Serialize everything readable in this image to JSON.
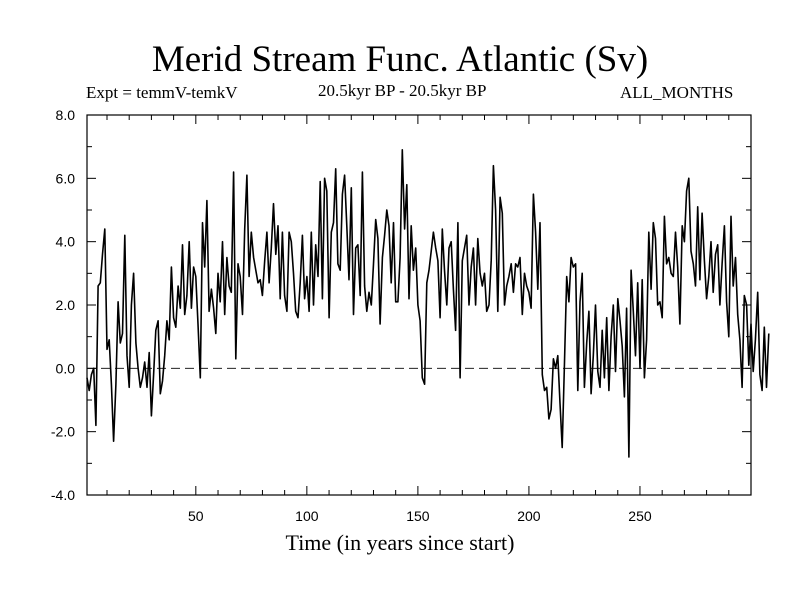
{
  "chart_data": {
    "type": "line",
    "title": "Merid Stream Func. Atlantic (Sv)",
    "subtitle_left": "Expt = temmV-temkV",
    "subtitle_center": "20.5kyr BP - 20.5kyr BP",
    "subtitle_right": "ALL_MONTHS",
    "xlabel": "Time (in years since start)",
    "ylabel": "",
    "xlim": [
      1,
      300
    ],
    "ylim": [
      -4.0,
      8.0
    ],
    "xticks": [
      50,
      100,
      150,
      200,
      250
    ],
    "yticks": [
      -4.0,
      -2.0,
      0.0,
      2.0,
      4.0,
      6.0,
      8.0
    ],
    "ytick_labels": [
      "-4.0",
      "-2.0",
      "0.0",
      "2.0",
      "4.0",
      "6.0",
      "8.0"
    ],
    "reference_line": 0.0,
    "series": [
      {
        "name": "Merid Stream Func.",
        "x_start": 1,
        "x_step": 1,
        "values": [
          -0.3,
          -0.7,
          -0.2,
          0.0,
          -1.8,
          2.6,
          2.7,
          3.6,
          4.4,
          0.6,
          0.9,
          -0.5,
          -2.3,
          -0.5,
          2.1,
          0.8,
          1.1,
          4.2,
          0.4,
          -0.6,
          2.0,
          3.0,
          0.8,
          0.0,
          -0.6,
          -0.3,
          0.2,
          -0.6,
          0.5,
          -1.5,
          -0.2,
          1.2,
          1.5,
          -0.8,
          -0.4,
          0.4,
          1.5,
          0.9,
          3.2,
          1.6,
          1.3,
          2.6,
          1.9,
          3.9,
          1.7,
          2.3,
          4.0,
          1.9,
          3.2,
          2.9,
          1.4,
          -0.3,
          4.6,
          3.2,
          5.3,
          1.8,
          2.5,
          1.9,
          1.1,
          3.0,
          2.1,
          4.0,
          1.7,
          3.5,
          2.6,
          2.4,
          6.2,
          0.3,
          3.3,
          2.9,
          1.7,
          4.4,
          6.1,
          2.9,
          4.3,
          3.5,
          3.1,
          2.7,
          2.8,
          2.3,
          3.4,
          4.3,
          2.7,
          3.8,
          5.2,
          3.6,
          4.5,
          2.2,
          4.3,
          2.3,
          1.8,
          4.3,
          4.0,
          3.0,
          1.8,
          1.6,
          2.7,
          4.2,
          2.2,
          2.9,
          1.8,
          4.3,
          2.0,
          3.9,
          2.9,
          5.9,
          2.2,
          6.0,
          5.6,
          1.6,
          4.3,
          4.6,
          6.3,
          3.3,
          3.1,
          5.5,
          6.1,
          4.5,
          2.8,
          5.7,
          1.7,
          3.8,
          3.9,
          2.3,
          6.2,
          2.6,
          1.8,
          2.4,
          2.0,
          3.3,
          4.7,
          4.1,
          1.4,
          3.5,
          4.2,
          5.0,
          4.5,
          2.7,
          4.6,
          2.1,
          2.1,
          3.5,
          6.9,
          4.4,
          5.8,
          2.2,
          4.5,
          3.1,
          3.8,
          2.0,
          1.5,
          -0.3,
          -0.5,
          2.7,
          3.1,
          3.7,
          4.3,
          3.8,
          3.4,
          1.6,
          4.4,
          3.1,
          2.0,
          3.8,
          4.0,
          2.5,
          1.2,
          4.6,
          -0.3,
          3.4,
          3.8,
          4.2,
          2.0,
          3.2,
          3.8,
          2.0,
          4.1,
          3.0,
          2.6,
          3.0,
          1.8,
          2.0,
          3.4,
          6.4,
          5.0,
          1.8,
          5.4,
          4.9,
          2.0,
          2.6,
          2.9,
          3.3,
          2.4,
          3.3,
          3.2,
          3.5,
          1.7,
          3.0,
          2.6,
          2.4,
          1.9,
          5.5,
          4.3,
          2.5,
          4.6,
          -0.2,
          -0.7,
          -0.6,
          -1.6,
          -1.3,
          0.3,
          0.0,
          0.4,
          -1.1,
          -2.5,
          0.2,
          2.9,
          2.1,
          3.5,
          3.2,
          3.3,
          -0.7,
          2.1,
          3.0,
          -0.6,
          0.8,
          1.8,
          -0.8,
          0.4,
          2.0,
          -0.1,
          -0.6,
          1.2,
          -0.3,
          1.6,
          -0.7,
          1.0,
          2.0,
          -0.1,
          2.2,
          1.5,
          0.7,
          -0.9,
          1.9,
          -2.8,
          3.1,
          1.8,
          0.4,
          2.7,
          0.0,
          2.8,
          -0.3,
          0.9,
          4.3,
          2.5,
          4.6,
          4.1,
          2.0,
          2.1,
          1.6,
          4.8,
          3.3,
          3.5,
          3.0,
          2.9,
          4.3,
          3.2,
          1.4,
          4.5,
          4.0,
          5.6,
          6.0,
          3.7,
          3.3,
          2.6,
          5.1,
          2.8,
          4.9,
          3.4,
          2.2,
          2.9,
          4.0,
          2.4,
          3.6,
          3.9,
          2.0,
          3.3,
          4.5,
          2.1,
          1.0,
          4.8,
          2.6,
          3.5,
          1.7,
          0.9,
          -0.6,
          2.3,
          2.0,
          0.1,
          1.4,
          -0.1,
          0.9,
          2.4,
          -0.2,
          -0.7,
          1.3,
          -0.6,
          1.1
        ]
      }
    ]
  }
}
